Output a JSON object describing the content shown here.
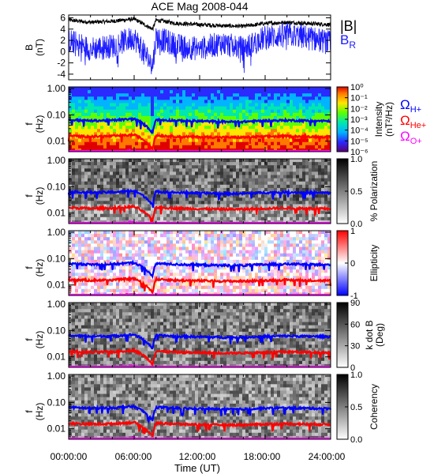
{
  "title": "ACE Mag 2008-044",
  "x_axis": {
    "label": "Time (UT)",
    "ticks": [
      "00:00:00",
      "06:00:00",
      "12:00:00",
      "18:00:00",
      "24:00:00"
    ]
  },
  "colors": {
    "btot": "#000000",
    "br": "#1a1aff",
    "h_plus": "#0000ff",
    "he_plus": "#ff0000",
    "o_plus": "#ff00ff"
  },
  "legends": {
    "btot": "|B|",
    "br": "B",
    "br_sub": "R",
    "gyro": [
      {
        "sym": "Ω",
        "sub": "H+",
        "color": "#0000ff"
      },
      {
        "sym": "Ω",
        "sub": "He+",
        "color": "#ff0000"
      },
      {
        "sym": "Ω",
        "sub": "O+",
        "color": "#ff00ff"
      }
    ]
  },
  "chart_data": [
    {
      "type": "line",
      "panel": "magnetic-field",
      "ylabel_top": "B",
      "ylabel_bottom": "(nT)",
      "ylim": [
        -5,
        6.5
      ],
      "yticks": [
        "6",
        "4",
        "2",
        "0",
        "-2",
        "-4"
      ],
      "x_hours": [
        0,
        2,
        4,
        6,
        7.7,
        8,
        10,
        12,
        14,
        16,
        18,
        20,
        22,
        24
      ],
      "series": [
        {
          "name": "|B|",
          "values": [
            5.6,
            5.2,
            5.4,
            5.8,
            4.0,
            5.6,
            5.0,
            4.8,
            4.6,
            4.5,
            5.0,
            5.2,
            5.0,
            4.8
          ]
        },
        {
          "name": "BR",
          "values": [
            2.0,
            0.5,
            1.0,
            2.5,
            -2.5,
            2.5,
            1.0,
            0.5,
            1.5,
            0.5,
            2.5,
            3.0,
            2.5,
            1.5
          ]
        }
      ]
    },
    {
      "type": "heatmap",
      "panel": "intensity",
      "ylabel_top": "f",
      "ylabel_bottom": "(Hz)",
      "ylim": [
        0.004,
        1.0
      ],
      "yscale": "log",
      "yticks": [
        "1.00",
        "0.10",
        "0.01"
      ],
      "colorbar": {
        "label": "Intensity",
        "units": "(nT²/Hz)",
        "ticks": [
          "10⁰",
          "10⁻¹",
          "10⁻²",
          "10⁻³",
          "10⁻⁴",
          "10⁻⁵",
          "10⁻⁶"
        ]
      }
    },
    {
      "type": "heatmap",
      "panel": "polarization",
      "ylabel_top": "f",
      "ylabel_bottom": "(Hz)",
      "ylim": [
        0.004,
        1.0
      ],
      "yscale": "log",
      "yticks": [
        "1.00",
        "0.10",
        "0.01"
      ],
      "colorbar": {
        "label": "% Polarization",
        "ticks": [
          "1.0",
          "0.5",
          "0.0"
        ]
      }
    },
    {
      "type": "heatmap",
      "panel": "ellipticity",
      "ylabel_top": "f",
      "ylabel_bottom": "(Hz)",
      "ylim": [
        0.004,
        1.0
      ],
      "yscale": "log",
      "yticks": [
        "1.00",
        "0.10",
        "0.01"
      ],
      "colorbar": {
        "label": "Ellipticity",
        "ticks": [
          "1",
          "0",
          "-1"
        ]
      }
    },
    {
      "type": "heatmap",
      "panel": "k-dot-b",
      "ylabel_top": "f",
      "ylabel_bottom": "(Hz)",
      "ylim": [
        0.004,
        1.0
      ],
      "yscale": "log",
      "yticks": [
        "1.00",
        "0.10",
        "0.01"
      ],
      "colorbar": {
        "label": "k dot B",
        "units": "(Deg)",
        "ticks": [
          "90",
          "60",
          "30",
          "0"
        ]
      }
    },
    {
      "type": "heatmap",
      "panel": "coherency",
      "ylabel_top": "f",
      "ylabel_bottom": "(Hz)",
      "ylim": [
        0.004,
        1.0
      ],
      "yscale": "log",
      "yticks": [
        "1.00",
        "0.10",
        "0.01"
      ],
      "colorbar": {
        "label": "Coherency",
        "ticks": [
          "1.0",
          "0.5",
          "0.0"
        ]
      }
    }
  ],
  "gyrofrequency_hz": {
    "x_hours": [
      0,
      2,
      4,
      6,
      7.7,
      8,
      10,
      12,
      14,
      16,
      18,
      20,
      22,
      24
    ],
    "h_plus": [
      0.065,
      0.06,
      0.062,
      0.07,
      0.02,
      0.066,
      0.06,
      0.058,
      0.055,
      0.055,
      0.06,
      0.062,
      0.06,
      0.058
    ],
    "he_plus": [
      0.016,
      0.015,
      0.0155,
      0.0175,
      0.005,
      0.0165,
      0.015,
      0.0145,
      0.014,
      0.014,
      0.015,
      0.0155,
      0.015,
      0.0145
    ],
    "o_plus": [
      0.0041,
      0.0038,
      0.0039,
      0.0044,
      0.0025,
      0.0041,
      0.0038,
      0.0037,
      0.0035,
      0.0035,
      0.0038,
      0.0039,
      0.0038,
      0.0037
    ]
  }
}
